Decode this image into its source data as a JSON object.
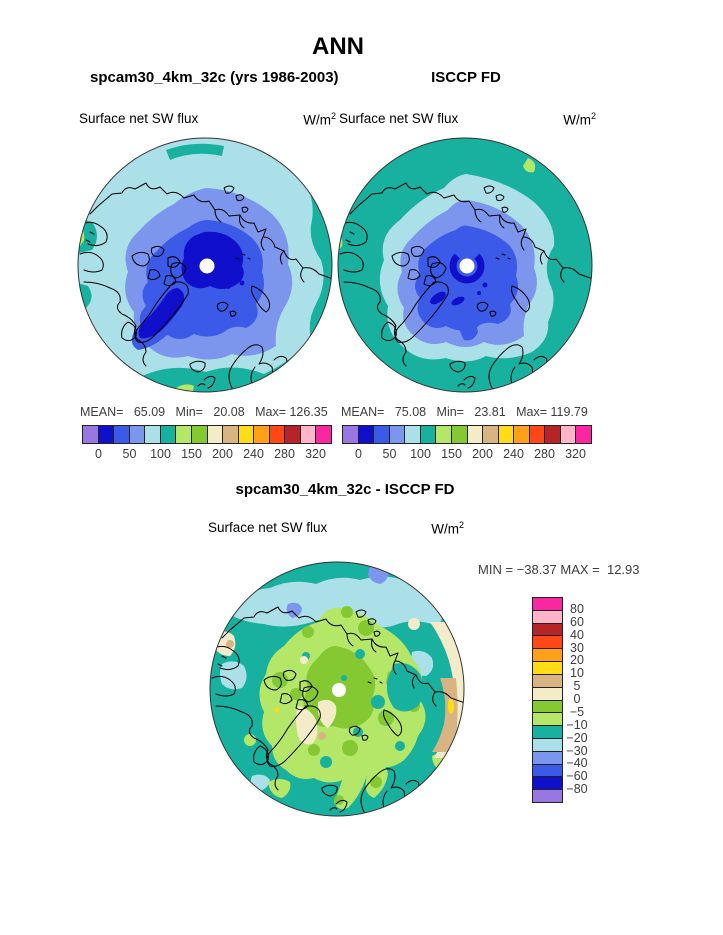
{
  "title": "ANN",
  "top_left_panel": {
    "subtitle": "spcam30_4km_32c (yrs 1986-2003)",
    "var_label": "Surface net SW flux",
    "units": "W/m",
    "units_sup": "2",
    "stats": "MEAN=   65.09   Min=   20.08   Max= 126.35"
  },
  "top_right_panel": {
    "subtitle": "ISCCP FD",
    "var_label": "Surface net SW flux",
    "units": "W/m",
    "units_sup": "2",
    "stats": "MEAN=   75.08   Min=   23.81   Max= 119.79"
  },
  "diff_panel": {
    "title": "spcam30_4km_32c - ISCCP FD",
    "var_label": "Surface net SW flux",
    "units": "W/m",
    "units_sup": "2",
    "stats": "MIN = −38.37 MAX =  12.93",
    "colorbar_labels": [
      "80",
      "60",
      "40",
      "30",
      "20",
      "10",
      "5",
      "0",
      "−5",
      "−10",
      "−20",
      "−30",
      "−40",
      "−60",
      "−80"
    ]
  },
  "colorbar": {
    "palette_low_to_high": [
      "#9878e0",
      "#1010cc",
      "#3c5ae8",
      "#7b96ec",
      "#ace0e8",
      "#18b09e",
      "#b4e668",
      "#84c832",
      "#f4ecc8",
      "#d8b482",
      "#ffdc18",
      "#ffa018",
      "#ff4818",
      "#b42428",
      "#ffb4c8",
      "#fa28a0"
    ],
    "tick_labels": [
      "0",
      "50",
      "100",
      "150",
      "200",
      "240",
      "280",
      "320"
    ]
  },
  "map_colors": {
    "coastline": "#000000",
    "pole_dot": "#ffffff",
    "rim": "#333333"
  },
  "chart_data": [
    {
      "type": "heatmap",
      "projection": "north-polar-stereographic",
      "panel": "top-left",
      "title": "spcam30_4km_32c (yrs 1986-2003)",
      "season": "ANN",
      "variable": "Surface net SW flux",
      "units": "W/m2",
      "stats": {
        "mean": 65.09,
        "min": 20.08,
        "max": 126.35
      },
      "colorbar_ticks": [
        0,
        50,
        100,
        150,
        200,
        240,
        280,
        320
      ],
      "palette_size": 16,
      "legend_position": "below"
    },
    {
      "type": "heatmap",
      "projection": "north-polar-stereographic",
      "panel": "top-right",
      "title": "ISCCP FD",
      "season": "ANN",
      "variable": "Surface net SW flux",
      "units": "W/m2",
      "stats": {
        "mean": 75.08,
        "min": 23.81,
        "max": 119.79
      },
      "colorbar_ticks": [
        0,
        50,
        100,
        150,
        200,
        240,
        280,
        320
      ],
      "palette_size": 16,
      "legend_position": "below"
    },
    {
      "type": "heatmap",
      "projection": "north-polar-stereographic",
      "panel": "bottom",
      "title": "spcam30_4km_32c - ISCCP FD",
      "season": "ANN",
      "variable": "Surface net SW flux",
      "units": "W/m2",
      "stats": {
        "min": -38.37,
        "max": 12.93
      },
      "colorbar_levels": [
        80,
        60,
        40,
        30,
        20,
        10,
        5,
        0,
        -5,
        -10,
        -20,
        -30,
        -40,
        -60,
        -80
      ],
      "palette_size": 16,
      "legend_position": "right"
    }
  ]
}
